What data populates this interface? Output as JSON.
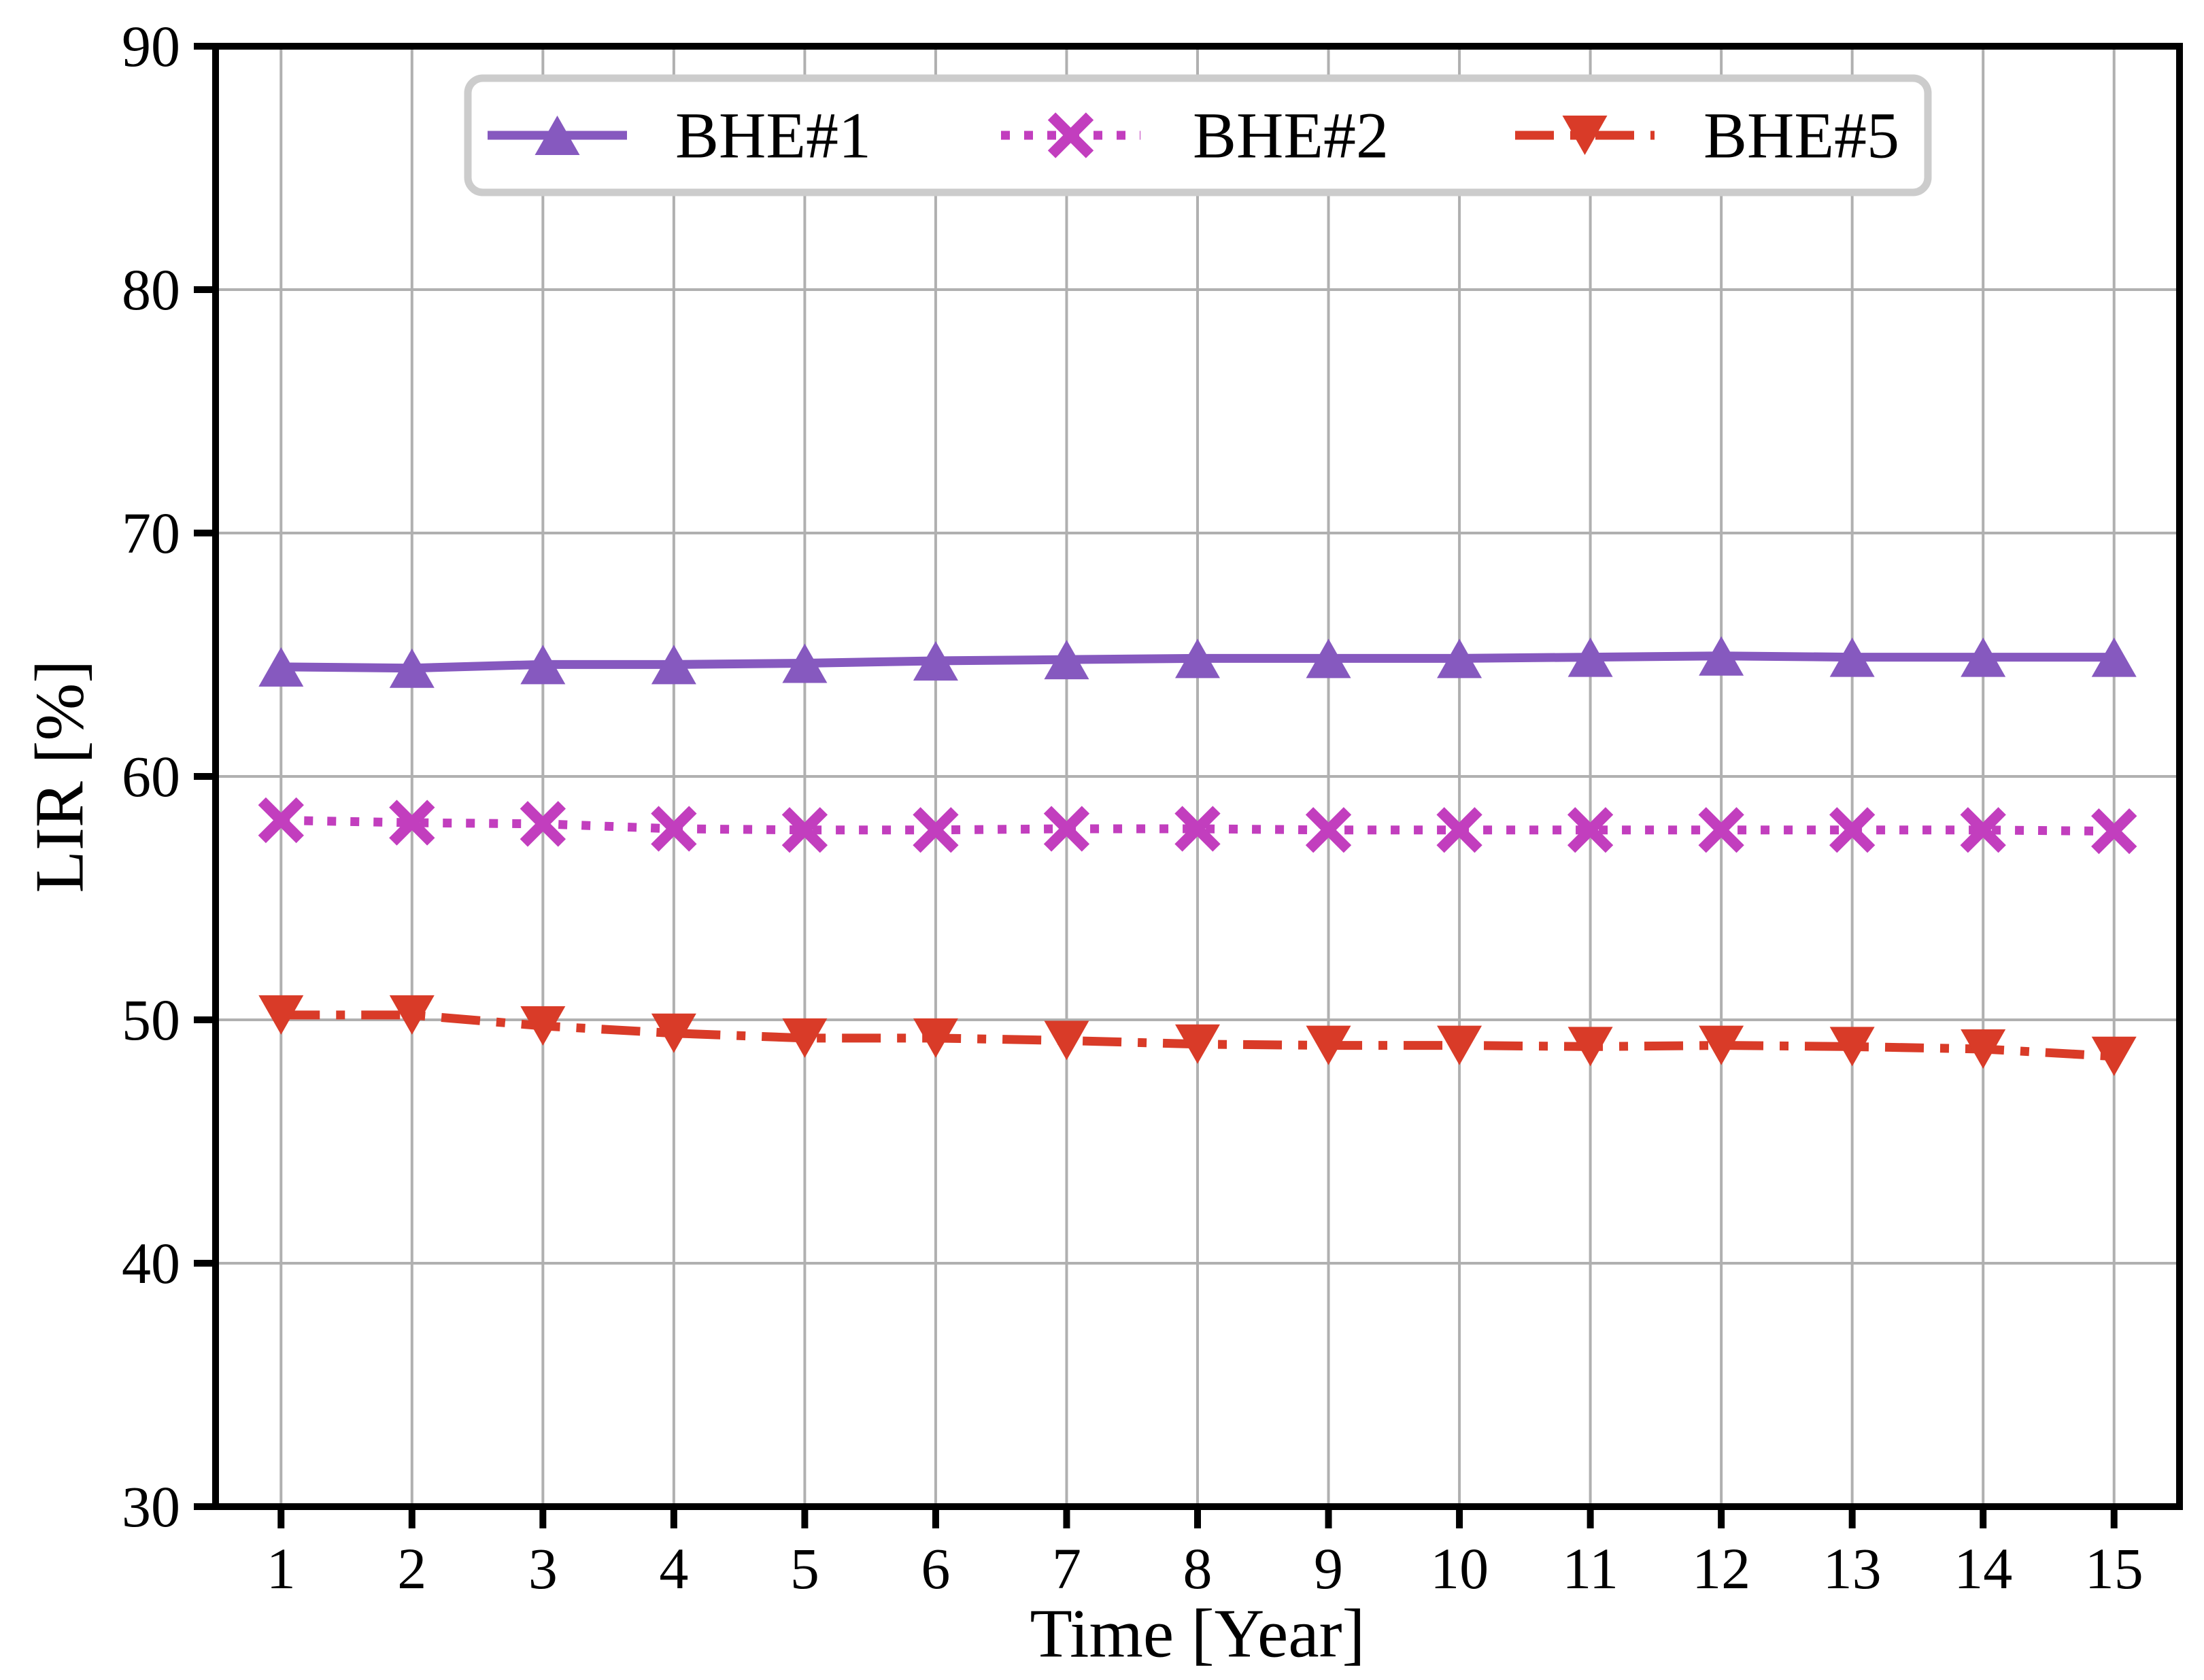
{
  "chart_data": {
    "type": "line",
    "title": "",
    "xlabel": "Time [Year]",
    "ylabel": "LIR [%]",
    "xlim": [
      0.5,
      15.5
    ],
    "ylim": [
      30,
      90
    ],
    "xticks": [
      1,
      2,
      3,
      4,
      5,
      6,
      7,
      8,
      9,
      10,
      11,
      12,
      13,
      14,
      15
    ],
    "yticks": [
      30,
      40,
      50,
      60,
      70,
      80,
      90
    ],
    "grid": true,
    "grid_color": "#b0b0b0",
    "legend_position": "upper center",
    "legend_border_color": "#cccccc",
    "x": [
      1,
      2,
      3,
      4,
      5,
      6,
      7,
      8,
      9,
      10,
      11,
      12,
      13,
      14,
      15
    ],
    "series": [
      {
        "name": "BHE#1",
        "color": "#8659bf",
        "line_style": "solid",
        "marker": "triangle-up",
        "values": [
          64.5,
          64.45,
          64.6,
          64.6,
          64.65,
          64.75,
          64.8,
          64.85,
          64.85,
          64.85,
          64.9,
          64.95,
          64.9,
          64.9,
          64.9
        ]
      },
      {
        "name": "BHE#2",
        "color": "#c23ebe",
        "line_style": "dotted",
        "marker": "x",
        "values": [
          58.2,
          58.1,
          58.05,
          57.85,
          57.8,
          57.8,
          57.85,
          57.85,
          57.8,
          57.8,
          57.8,
          57.8,
          57.8,
          57.8,
          57.75
        ]
      },
      {
        "name": "BHE#5",
        "color": "#d93b28",
        "line_style": "dashdot",
        "marker": "triangle-down",
        "values": [
          50.2,
          50.2,
          49.75,
          49.45,
          49.25,
          49.25,
          49.15,
          49.0,
          48.95,
          48.95,
          48.9,
          48.95,
          48.9,
          48.8,
          48.5
        ]
      }
    ]
  }
}
